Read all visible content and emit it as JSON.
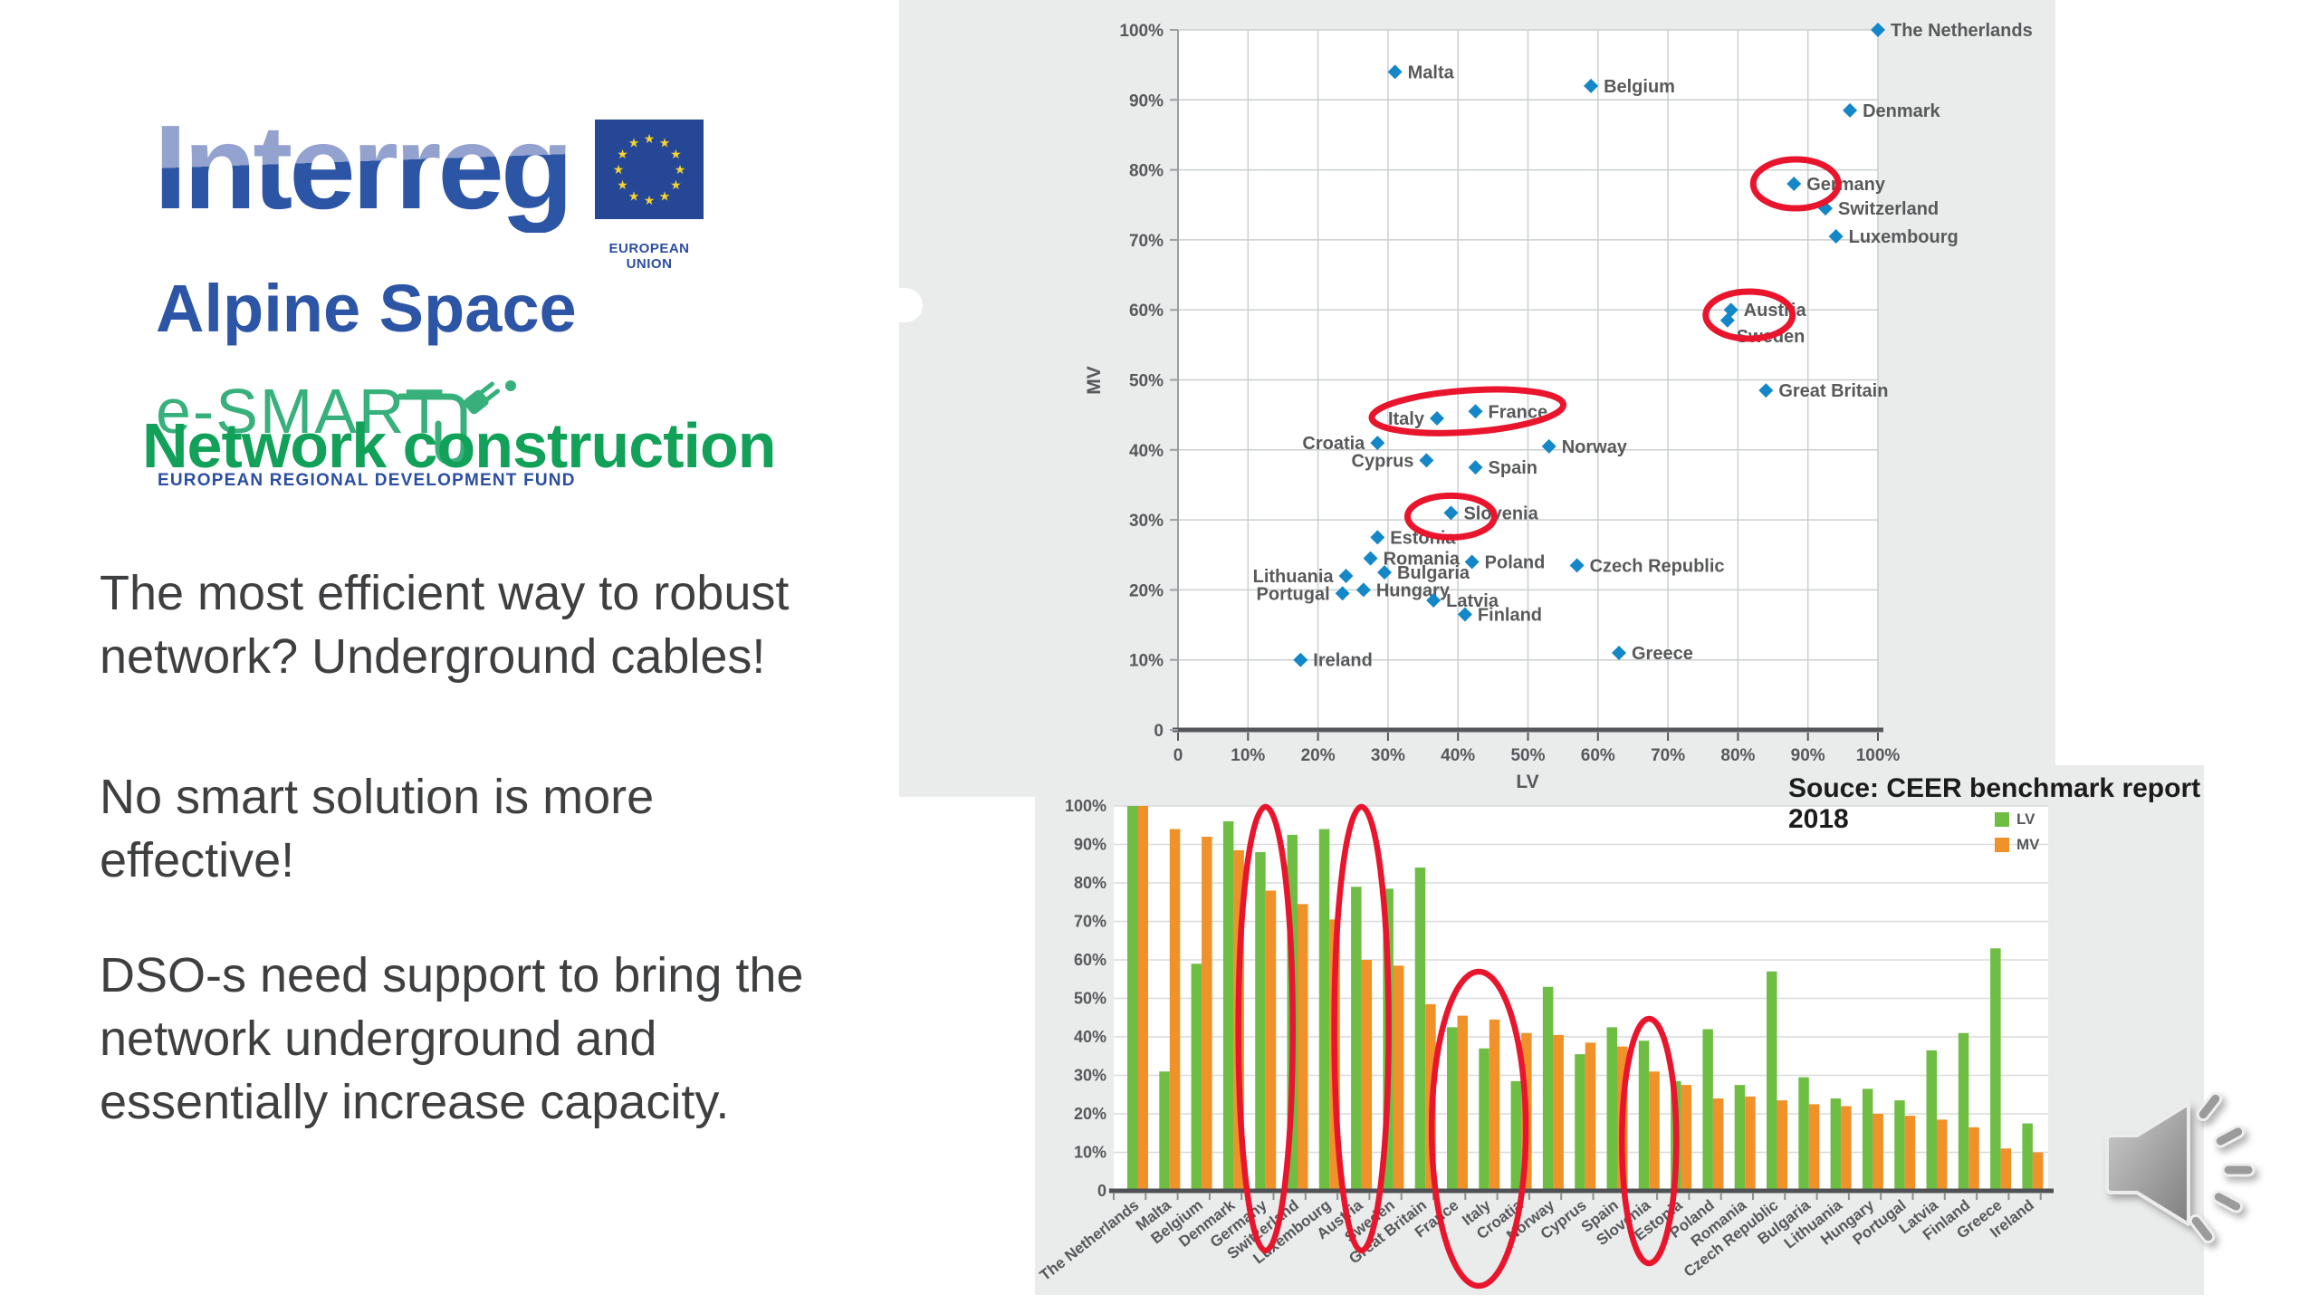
{
  "logo": {
    "brand": "Interreg",
    "program": "Alpine Space",
    "project": "e-SMART",
    "fund": "EUROPEAN REGIONAL DEVELOPMENT FUND",
    "eu_label": "EUROPEAN UNION"
  },
  "left_panel": {
    "title": "Network construction",
    "paragraphs": [
      "The most efficient way to robust network? Underground cables!",
      "No smart solution is more effective!",
      "DSO-s need support to bring the network underground and essentially increase capacity."
    ]
  },
  "source_note": "Souce: CEER benchmark report 2018",
  "audio_icon": "speaker-with-sound-waves",
  "colors": {
    "title_green": "#12a159",
    "logo_blue": "#2d55a6",
    "logo_blue_light": "#93a2ce",
    "esmart_green": "#38b07c",
    "eu_flag_blue": "#264796",
    "eu_star_yellow": "#f8d22e",
    "body_text": "#3e3f41",
    "panel_gray": "#eaebeb",
    "scatter_marker": "#1487c8",
    "bar_green": "#6fbe44",
    "bar_orange": "#f0912a",
    "annotation_red": "#e9152d",
    "chart_text": "#56585b",
    "axis_dark": "#53575a"
  },
  "chart_data": [
    {
      "type": "scatter",
      "xlabel": "LV",
      "ylabel": "MV",
      "xlim": [
        0,
        100
      ],
      "ylim": [
        0,
        100
      ],
      "grid": true,
      "x_ticks": [
        "0",
        "10%",
        "20%",
        "30%",
        "40%",
        "50%",
        "60%",
        "70%",
        "80%",
        "90%",
        "100%"
      ],
      "y_ticks": [
        "0",
        "10%",
        "20%",
        "30%",
        "40%",
        "50%",
        "60%",
        "70%",
        "80%",
        "90%",
        "100%"
      ],
      "marker": {
        "shape": "diamond",
        "color": "#1487c8"
      },
      "points": [
        {
          "name": "The Netherlands",
          "lv": 100,
          "mv": 100
        },
        {
          "name": "Malta",
          "lv": 31,
          "mv": 94
        },
        {
          "name": "Belgium",
          "lv": 59,
          "mv": 92
        },
        {
          "name": "Denmark",
          "lv": 96,
          "mv": 88.5
        },
        {
          "name": "Germany",
          "lv": 88,
          "mv": 78
        },
        {
          "name": "Switzerland",
          "lv": 92.5,
          "mv": 74.5
        },
        {
          "name": "Luxembourg",
          "lv": 94,
          "mv": 70.5
        },
        {
          "name": "Austria",
          "lv": 79,
          "mv": 60
        },
        {
          "name": "Sweden",
          "lv": 78.5,
          "mv": 58.5
        },
        {
          "name": "Great Britain",
          "lv": 84,
          "mv": 48.5
        },
        {
          "name": "France",
          "lv": 42.5,
          "mv": 45.5
        },
        {
          "name": "Italy",
          "lv": 37,
          "mv": 44.5
        },
        {
          "name": "Croatia",
          "lv": 28.5,
          "mv": 41
        },
        {
          "name": "Norway",
          "lv": 53,
          "mv": 40.5
        },
        {
          "name": "Cyprus",
          "lv": 35.5,
          "mv": 38.5
        },
        {
          "name": "Spain",
          "lv": 42.5,
          "mv": 37.5
        },
        {
          "name": "Slovenia",
          "lv": 39,
          "mv": 31
        },
        {
          "name": "Estonia",
          "lv": 28.5,
          "mv": 27.5
        },
        {
          "name": "Romania",
          "lv": 27.5,
          "mv": 24.5
        },
        {
          "name": "Poland",
          "lv": 42,
          "mv": 24
        },
        {
          "name": "Czech Republic",
          "lv": 57,
          "mv": 23.5
        },
        {
          "name": "Lithuania",
          "lv": 24,
          "mv": 22
        },
        {
          "name": "Bulgaria",
          "lv": 29.5,
          "mv": 22.5
        },
        {
          "name": "Hungary",
          "lv": 26.5,
          "mv": 20
        },
        {
          "name": "Portugal",
          "lv": 23.5,
          "mv": 19.5
        },
        {
          "name": "Latvia",
          "lv": 36.5,
          "mv": 18.5
        },
        {
          "name": "Finland",
          "lv": 41,
          "mv": 16.5
        },
        {
          "name": "Greece",
          "lv": 63,
          "mv": 11
        },
        {
          "name": "Ireland",
          "lv": 17.5,
          "mv": 10
        }
      ],
      "annotations": [
        {
          "shape": "ellipse",
          "countries": [
            "Germany"
          ]
        },
        {
          "shape": "ellipse",
          "countries": [
            "Austria",
            "Sweden"
          ]
        },
        {
          "shape": "ellipse",
          "countries": [
            "Italy",
            "France"
          ]
        },
        {
          "shape": "ellipse",
          "countries": [
            "Slovenia"
          ]
        }
      ]
    },
    {
      "type": "bar",
      "title": "",
      "ylim": [
        0,
        100
      ],
      "grid": true,
      "y_ticks": [
        "0",
        "10%",
        "20%",
        "30%",
        "40%",
        "50%",
        "60%",
        "70%",
        "80%",
        "90%",
        "100%"
      ],
      "legend_position": "top-right",
      "categories": [
        "The Netherlands",
        "Malta",
        "Belgium",
        "Denmark",
        "Germany",
        "Switzerland",
        "Luxembourg",
        "Austria",
        "Sweden",
        "Great Britain",
        "France",
        "Italy",
        "Croatia",
        "Norway",
        "Cyprus",
        "Spain",
        "Slovenia",
        "Estonia",
        "Poland",
        "Romania",
        "Czech Republic",
        "Bulgaria",
        "Lithuania",
        "Hungary",
        "Portugal",
        "Latvia",
        "Finland",
        "Greece",
        "Ireland"
      ],
      "series": [
        {
          "name": "LV",
          "color": "#6fbe44",
          "values": [
            100,
            31,
            59,
            96,
            88,
            92.5,
            94,
            79,
            78.5,
            84,
            42.5,
            37,
            28.5,
            53,
            35.5,
            42.5,
            39,
            28.5,
            42,
            27.5,
            57,
            29.5,
            24,
            26.5,
            23.5,
            36.5,
            41,
            63,
            17.5
          ]
        },
        {
          "name": "MV",
          "color": "#f0912a",
          "values": [
            100,
            94,
            92,
            88.5,
            78,
            74.5,
            70.5,
            60,
            58.5,
            48.5,
            45.5,
            44.5,
            41,
            40.5,
            38.5,
            37.5,
            31,
            27.5,
            24,
            24.5,
            23.5,
            22.5,
            22,
            20,
            19.5,
            18.5,
            16.5,
            11,
            10
          ]
        }
      ],
      "annotations": [
        {
          "shape": "ellipse",
          "countries": [
            "Germany"
          ]
        },
        {
          "shape": "ellipse",
          "countries": [
            "Austria"
          ]
        },
        {
          "shape": "ellipse",
          "countries": [
            "France",
            "Italy"
          ]
        },
        {
          "shape": "ellipse",
          "countries": [
            "Slovenia"
          ]
        }
      ]
    }
  ]
}
